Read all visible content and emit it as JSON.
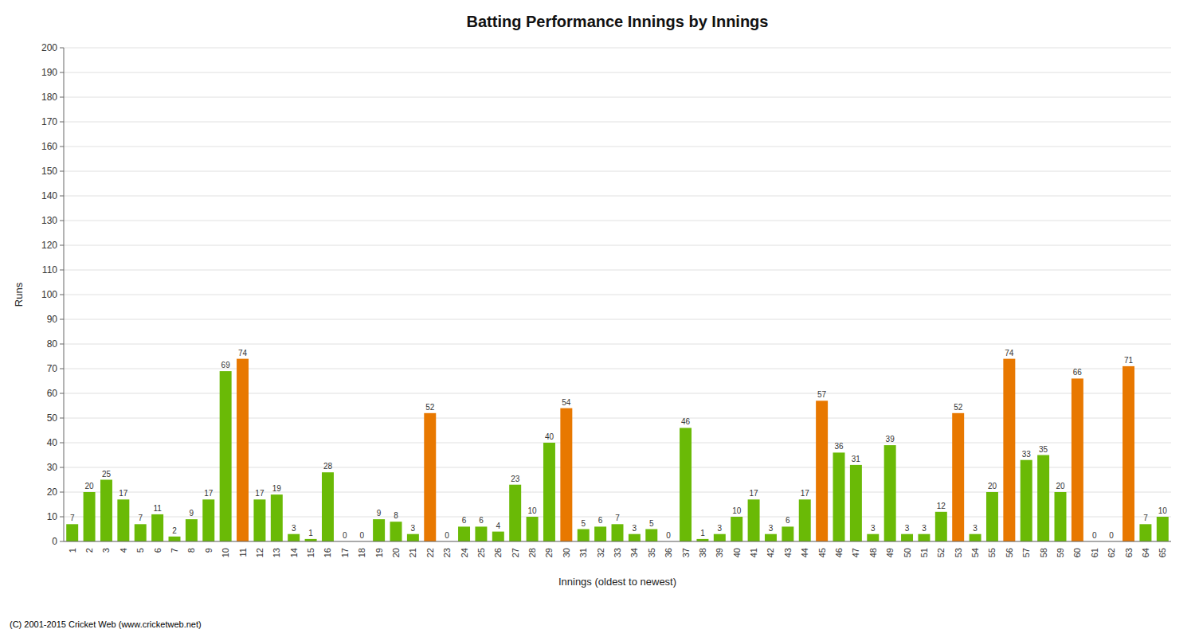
{
  "chart_data": {
    "type": "bar",
    "title": "Batting Performance Innings by Innings",
    "xlabel": "Innings (oldest to newest)",
    "ylabel": "Runs",
    "footer": "(C) 2001-2015 Cricket Web (www.cricketweb.net)",
    "categories": [
      1,
      2,
      3,
      4,
      5,
      6,
      7,
      8,
      9,
      10,
      11,
      12,
      13,
      14,
      15,
      16,
      17,
      18,
      19,
      20,
      21,
      22,
      23,
      24,
      25,
      26,
      27,
      28,
      29,
      30,
      31,
      32,
      33,
      34,
      35,
      36,
      37,
      38,
      39,
      40,
      41,
      42,
      43,
      44,
      45,
      46,
      47,
      48,
      49,
      50,
      51,
      52,
      53,
      54,
      55,
      56,
      57,
      58,
      59,
      60,
      61,
      62,
      63,
      64,
      65
    ],
    "values": [
      7,
      20,
      25,
      17,
      7,
      11,
      2,
      9,
      17,
      69,
      74,
      17,
      19,
      3,
      1,
      28,
      0,
      0,
      9,
      8,
      3,
      52,
      0,
      6,
      6,
      4,
      23,
      10,
      40,
      54,
      5,
      6,
      7,
      3,
      5,
      0,
      46,
      1,
      3,
      10,
      17,
      3,
      6,
      17,
      57,
      36,
      31,
      3,
      39,
      3,
      3,
      12,
      52,
      3,
      20,
      74,
      33,
      35,
      20,
      66,
      0,
      0,
      71,
      7,
      10
    ],
    "colors": [
      "#6aba06",
      "#6aba06",
      "#6aba06",
      "#6aba06",
      "#6aba06",
      "#6aba06",
      "#6aba06",
      "#6aba06",
      "#6aba06",
      "#6aba06",
      "#e87800",
      "#6aba06",
      "#6aba06",
      "#6aba06",
      "#6aba06",
      "#6aba06",
      "#6aba06",
      "#6aba06",
      "#6aba06",
      "#6aba06",
      "#6aba06",
      "#e87800",
      "#6aba06",
      "#6aba06",
      "#6aba06",
      "#6aba06",
      "#6aba06",
      "#6aba06",
      "#6aba06",
      "#e87800",
      "#6aba06",
      "#6aba06",
      "#6aba06",
      "#6aba06",
      "#6aba06",
      "#6aba06",
      "#6aba06",
      "#6aba06",
      "#6aba06",
      "#6aba06",
      "#6aba06",
      "#6aba06",
      "#6aba06",
      "#6aba06",
      "#e87800",
      "#6aba06",
      "#6aba06",
      "#6aba06",
      "#6aba06",
      "#6aba06",
      "#6aba06",
      "#6aba06",
      "#e87800",
      "#6aba06",
      "#6aba06",
      "#e87800",
      "#6aba06",
      "#6aba06",
      "#6aba06",
      "#e87800",
      "#6aba06",
      "#6aba06",
      "#e87800",
      "#6aba06",
      "#6aba06"
    ],
    "ylim": [
      0,
      200
    ],
    "yticks": [
      0,
      10,
      20,
      30,
      40,
      50,
      60,
      70,
      80,
      90,
      100,
      110,
      120,
      130,
      140,
      150,
      160,
      170,
      180,
      190,
      200
    ],
    "grid": true,
    "data_labels": true
  }
}
